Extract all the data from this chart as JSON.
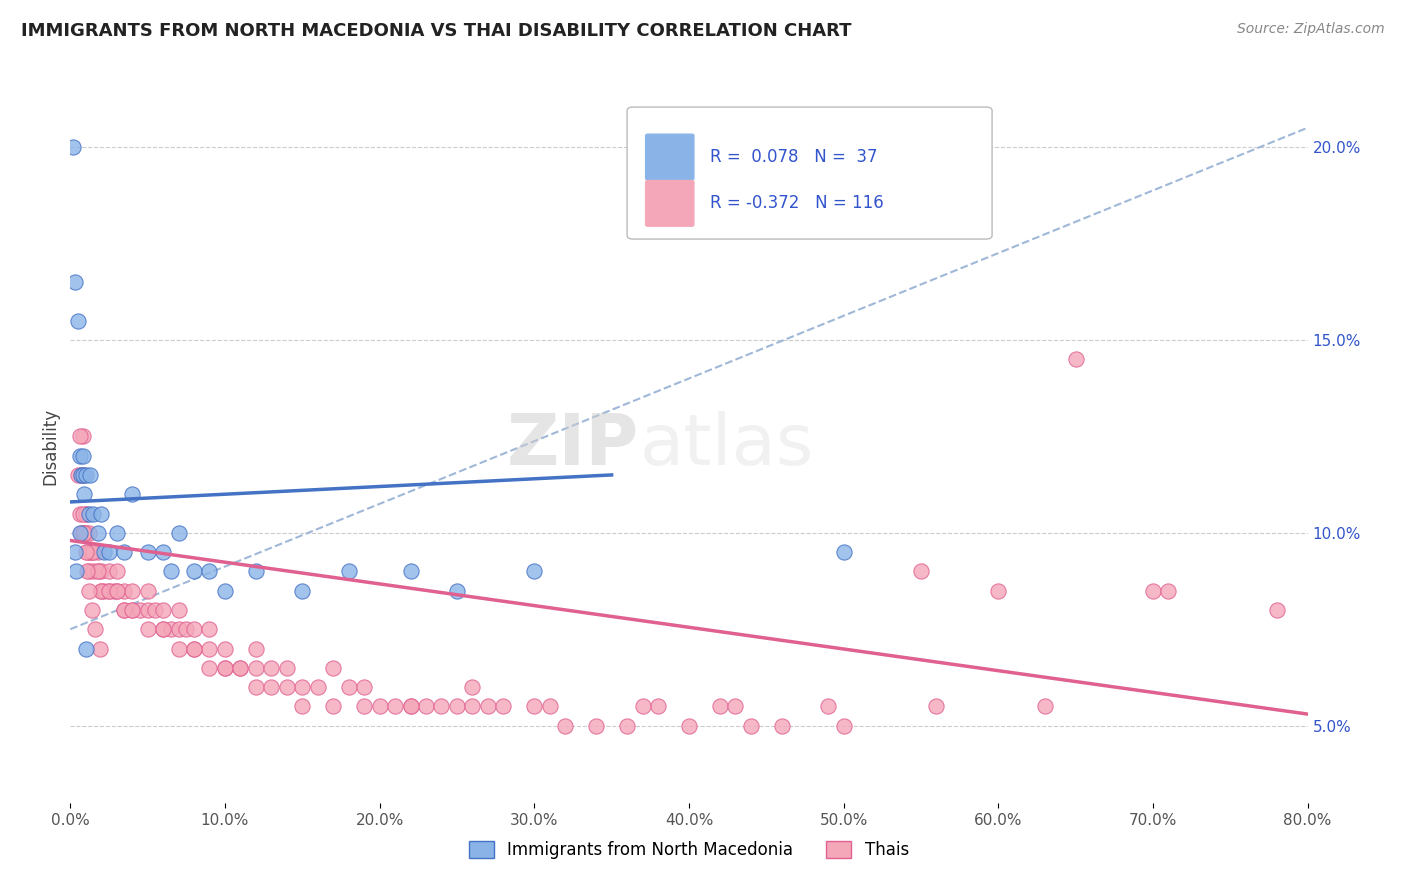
{
  "title": "IMMIGRANTS FROM NORTH MACEDONIA VS THAI DISABILITY CORRELATION CHART",
  "source": "Source: ZipAtlas.com",
  "ylabel": "Disability",
  "xlim": [
    0.0,
    0.8
  ],
  "ylim": [
    0.03,
    0.215
  ],
  "yticks": [
    0.05,
    0.1,
    0.15,
    0.2
  ],
  "ytick_labels": [
    "5.0%",
    "10.0%",
    "15.0%",
    "20.0%"
  ],
  "xticks": [
    0.0,
    0.1,
    0.2,
    0.3,
    0.4,
    0.5,
    0.6,
    0.7,
    0.8
  ],
  "xtick_labels": [
    "0.0%",
    "10.0%",
    "20.0%",
    "30.0%",
    "40.0%",
    "50.0%",
    "60.0%",
    "70.0%",
    "80.0%"
  ],
  "blue_color": "#8ab4e8",
  "pink_color": "#f4a7b9",
  "blue_line_color": "#4472c4",
  "pink_line_color": "#e06090",
  "dashed_line_color": "#a0b8d8",
  "legend_text_color": "#3355cc",
  "watermark_zip": "ZIP",
  "watermark_atlas": "atlas",
  "r_blue": 0.078,
  "n_blue": 37,
  "r_pink": -0.372,
  "n_pink": 116,
  "blue_scatter_x": [
    0.002,
    0.003,
    0.005,
    0.006,
    0.007,
    0.008,
    0.009,
    0.01,
    0.012,
    0.013,
    0.015,
    0.018,
    0.02,
    0.022,
    0.025,
    0.03,
    0.035,
    0.04,
    0.05,
    0.06,
    0.065,
    0.07,
    0.08,
    0.09,
    0.1,
    0.12,
    0.15,
    0.18,
    0.22,
    0.25,
    0.3,
    0.01,
    0.008,
    0.006,
    0.004,
    0.5,
    0.003
  ],
  "blue_scatter_y": [
    0.2,
    0.165,
    0.155,
    0.12,
    0.115,
    0.115,
    0.11,
    0.115,
    0.105,
    0.115,
    0.105,
    0.1,
    0.105,
    0.095,
    0.095,
    0.1,
    0.095,
    0.11,
    0.095,
    0.095,
    0.09,
    0.1,
    0.09,
    0.09,
    0.085,
    0.09,
    0.085,
    0.09,
    0.09,
    0.085,
    0.09,
    0.07,
    0.12,
    0.1,
    0.09,
    0.095,
    0.095
  ],
  "pink_scatter_x": [
    0.005,
    0.006,
    0.007,
    0.008,
    0.009,
    0.01,
    0.01,
    0.012,
    0.013,
    0.015,
    0.015,
    0.018,
    0.018,
    0.02,
    0.02,
    0.022,
    0.025,
    0.025,
    0.028,
    0.03,
    0.03,
    0.035,
    0.035,
    0.04,
    0.04,
    0.045,
    0.05,
    0.05,
    0.055,
    0.06,
    0.06,
    0.065,
    0.07,
    0.07,
    0.075,
    0.08,
    0.08,
    0.09,
    0.09,
    0.1,
    0.1,
    0.11,
    0.12,
    0.12,
    0.13,
    0.14,
    0.15,
    0.16,
    0.17,
    0.18,
    0.19,
    0.2,
    0.21,
    0.22,
    0.23,
    0.24,
    0.25,
    0.26,
    0.27,
    0.28,
    0.3,
    0.32,
    0.34,
    0.36,
    0.38,
    0.4,
    0.42,
    0.44,
    0.46,
    0.5,
    0.55,
    0.6,
    0.65,
    0.7,
    0.008,
    0.009,
    0.01,
    0.011,
    0.012,
    0.013,
    0.015,
    0.018,
    0.02,
    0.025,
    0.03,
    0.035,
    0.04,
    0.05,
    0.06,
    0.07,
    0.08,
    0.09,
    0.1,
    0.11,
    0.12,
    0.13,
    0.14,
    0.15,
    0.17,
    0.19,
    0.22,
    0.26,
    0.31,
    0.37,
    0.43,
    0.49,
    0.56,
    0.63,
    0.71,
    0.78,
    0.006,
    0.007,
    0.008,
    0.009,
    0.01,
    0.011,
    0.012,
    0.014,
    0.016,
    0.019
  ],
  "pink_scatter_y": [
    0.115,
    0.105,
    0.1,
    0.1,
    0.1,
    0.1,
    0.105,
    0.09,
    0.095,
    0.095,
    0.09,
    0.09,
    0.095,
    0.09,
    0.085,
    0.085,
    0.085,
    0.09,
    0.085,
    0.085,
    0.09,
    0.085,
    0.08,
    0.08,
    0.085,
    0.08,
    0.08,
    0.085,
    0.08,
    0.075,
    0.08,
    0.075,
    0.075,
    0.08,
    0.075,
    0.07,
    0.075,
    0.07,
    0.075,
    0.07,
    0.065,
    0.065,
    0.065,
    0.07,
    0.065,
    0.065,
    0.06,
    0.06,
    0.065,
    0.06,
    0.06,
    0.055,
    0.055,
    0.055,
    0.055,
    0.055,
    0.055,
    0.06,
    0.055,
    0.055,
    0.055,
    0.05,
    0.05,
    0.05,
    0.055,
    0.05,
    0.055,
    0.05,
    0.05,
    0.05,
    0.09,
    0.085,
    0.145,
    0.085,
    0.125,
    0.115,
    0.105,
    0.095,
    0.1,
    0.095,
    0.095,
    0.09,
    0.085,
    0.085,
    0.085,
    0.08,
    0.08,
    0.075,
    0.075,
    0.07,
    0.07,
    0.065,
    0.065,
    0.065,
    0.06,
    0.06,
    0.06,
    0.055,
    0.055,
    0.055,
    0.055,
    0.055,
    0.055,
    0.055,
    0.055,
    0.055,
    0.055,
    0.055,
    0.085,
    0.08,
    0.125,
    0.115,
    0.105,
    0.1,
    0.095,
    0.09,
    0.085,
    0.08,
    0.075,
    0.07
  ],
  "legend_label1": "Immigrants from North Macedonia",
  "legend_label2": "Thais",
  "background_color": "#ffffff",
  "grid_color": "#cccccc"
}
